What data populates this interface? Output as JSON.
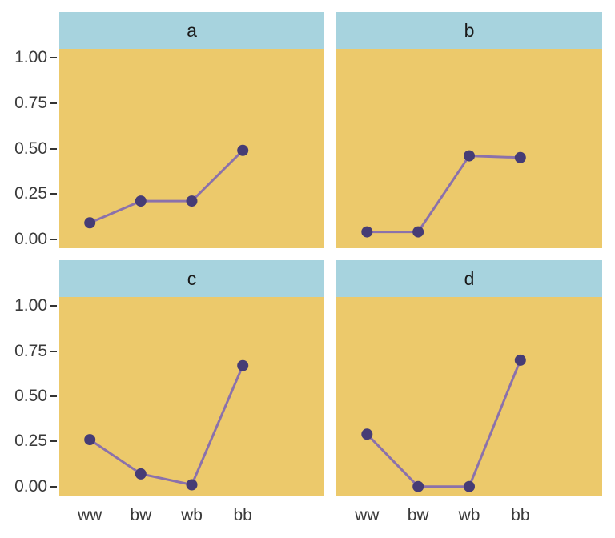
{
  "chart_data": {
    "type": "line",
    "title": "",
    "xlabel": "",
    "ylabel": "",
    "categories": [
      "ww",
      "bw",
      "wb",
      "bb"
    ],
    "y_ticks": {
      "labels": [
        "1.00",
        "0.75",
        "0.50",
        "0.25",
        "0.00"
      ],
      "values": [
        1.0,
        0.75,
        0.5,
        0.25,
        0.0
      ]
    },
    "ylim": [
      -0.05,
      1.05
    ],
    "grid": false,
    "legend": "none",
    "facets": [
      {
        "label": "a",
        "values": [
          0.09,
          0.21,
          0.21,
          0.49
        ]
      },
      {
        "label": "b",
        "values": [
          0.04,
          0.04,
          0.46,
          0.45
        ]
      },
      {
        "label": "c",
        "values": [
          0.26,
          0.07,
          0.01,
          0.67
        ]
      },
      {
        "label": "d",
        "values": [
          0.29,
          0.0,
          0.0,
          0.7
        ]
      }
    ],
    "colors": {
      "background": "#ffffff",
      "strip_bg": "#a7d3de",
      "panel_bg": "#ecc96b",
      "line": "#8b71ab",
      "point": "#463c75",
      "axis_text": "#3a3a3a",
      "tick": "#333333"
    },
    "style": {
      "point_radius": 7,
      "line_width": 3
    }
  }
}
